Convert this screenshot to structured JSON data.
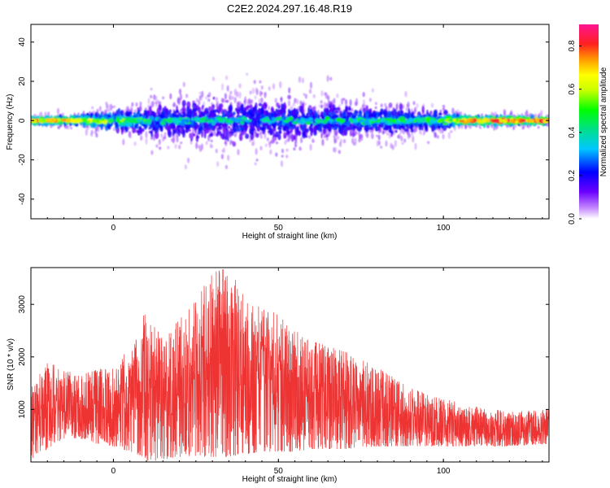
{
  "title": "C2E2.2024.297.16.48.R19",
  "chart_data": [
    {
      "type": "heatmap",
      "xlabel": "Height of straight line (km)",
      "ylabel": "Frequency (Hz)",
      "xlim": [
        -25,
        132
      ],
      "ylim": [
        -50,
        49
      ],
      "xticks": [
        0,
        50,
        100
      ],
      "yticks": [
        -40,
        -20,
        0,
        20,
        40
      ],
      "colorbar": {
        "label": "Normalized spectral amplitude",
        "range": [
          0,
          0.9
        ],
        "ticks": [
          0.0,
          0.2,
          0.4,
          0.6,
          0.8
        ]
      },
      "band_profile": [
        {
          "x": -25,
          "halfwidth": 2,
          "amplitude": 0.6
        },
        {
          "x": -10,
          "halfwidth": 3,
          "amplitude": 0.55
        },
        {
          "x": 0,
          "halfwidth": 6,
          "amplitude": 0.4
        },
        {
          "x": 10,
          "halfwidth": 10,
          "amplitude": 0.3
        },
        {
          "x": 30,
          "halfwidth": 14,
          "amplitude": 0.25
        },
        {
          "x": 45,
          "halfwidth": 16,
          "amplitude": 0.25
        },
        {
          "x": 60,
          "halfwidth": 12,
          "amplitude": 0.28
        },
        {
          "x": 80,
          "halfwidth": 10,
          "amplitude": 0.3
        },
        {
          "x": 100,
          "halfwidth": 6,
          "amplitude": 0.35
        },
        {
          "x": 106,
          "halfwidth": 3,
          "amplitude": 0.6
        },
        {
          "x": 132,
          "halfwidth": 2,
          "amplitude": 0.7
        }
      ]
    },
    {
      "type": "line",
      "xlabel": "Height of straight line (km)",
      "ylabel": "SNR (10 * v/v)",
      "xlim": [
        -25,
        132
      ],
      "ylim": [
        0,
        3700
      ],
      "xticks": [
        0,
        50,
        100
      ],
      "yticks": [
        1000,
        2000,
        3000
      ],
      "series": [
        {
          "color": "#ee3333",
          "envelope": [
            {
              "x": -25,
              "low": 50,
              "high": 1400
            },
            {
              "x": -20,
              "low": 250,
              "high": 1900
            },
            {
              "x": -15,
              "low": 450,
              "high": 1750
            },
            {
              "x": -10,
              "low": 450,
              "high": 1650
            },
            {
              "x": -5,
              "low": 350,
              "high": 1750
            },
            {
              "x": 0,
              "low": 300,
              "high": 1850
            },
            {
              "x": 5,
              "low": 200,
              "high": 2150
            },
            {
              "x": 9,
              "low": 100,
              "high": 2850
            },
            {
              "x": 11,
              "low": 0,
              "high": 2700
            },
            {
              "x": 15,
              "low": 50,
              "high": 2400
            },
            {
              "x": 20,
              "low": 100,
              "high": 2700
            },
            {
              "x": 25,
              "low": 100,
              "high": 3100
            },
            {
              "x": 30,
              "low": 100,
              "high": 3600
            },
            {
              "x": 35,
              "low": 100,
              "high": 3700
            },
            {
              "x": 40,
              "low": 150,
              "high": 3100
            },
            {
              "x": 45,
              "low": 200,
              "high": 2950
            },
            {
              "x": 50,
              "low": 200,
              "high": 2800
            },
            {
              "x": 55,
              "low": 200,
              "high": 2500
            },
            {
              "x": 60,
              "low": 250,
              "high": 2300
            },
            {
              "x": 70,
              "low": 250,
              "high": 2100
            },
            {
              "x": 80,
              "low": 300,
              "high": 1800
            },
            {
              "x": 90,
              "low": 300,
              "high": 1400
            },
            {
              "x": 100,
              "low": 300,
              "high": 1200
            },
            {
              "x": 110,
              "low": 300,
              "high": 1050
            },
            {
              "x": 120,
              "low": 300,
              "high": 950
            },
            {
              "x": 132,
              "low": 350,
              "high": 1000
            }
          ]
        }
      ]
    }
  ]
}
